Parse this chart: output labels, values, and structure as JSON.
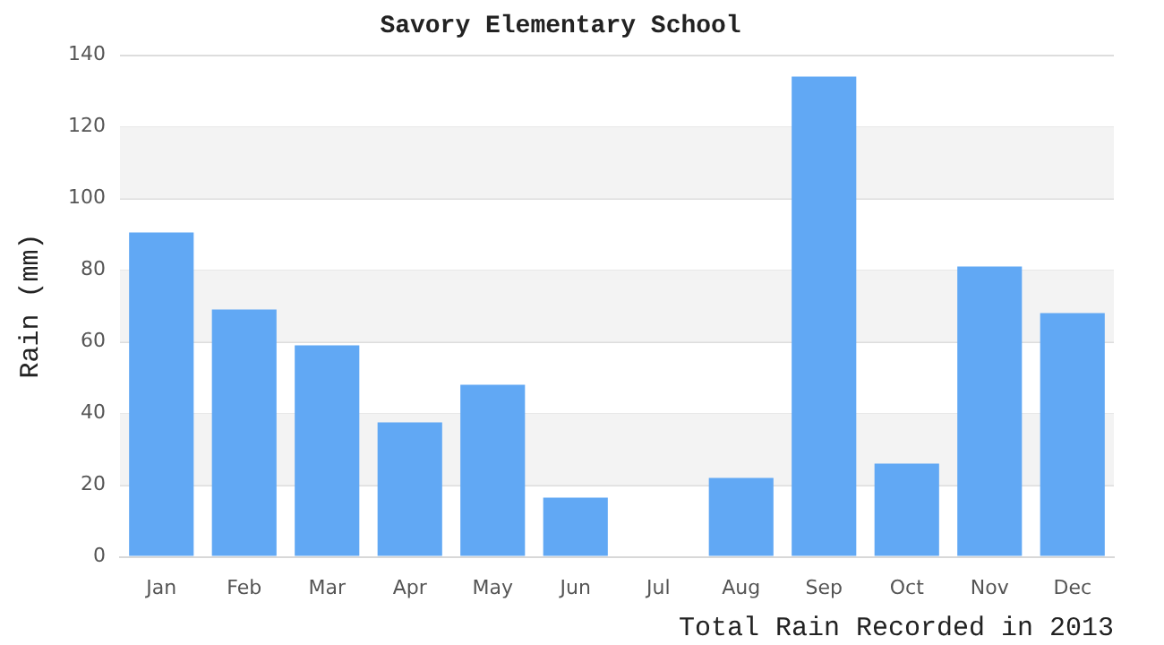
{
  "chart_data": {
    "type": "bar",
    "title": "Savory Elementary School",
    "xlabel": "Total Rain Recorded in 2013",
    "ylabel": "Rain (mm)",
    "categories": [
      "Jan",
      "Feb",
      "Mar",
      "Apr",
      "May",
      "Jun",
      "Jul",
      "Aug",
      "Sep",
      "Oct",
      "Nov",
      "Dec"
    ],
    "values": [
      90.5,
      69,
      59,
      37.5,
      48,
      16.5,
      0,
      22,
      134,
      26,
      81,
      68
    ],
    "color": "#61a8f4",
    "ylim": [
      0,
      140
    ],
    "yticks": [
      0,
      20,
      40,
      60,
      80,
      100,
      120,
      140
    ],
    "grid": "y",
    "legend": false
  }
}
